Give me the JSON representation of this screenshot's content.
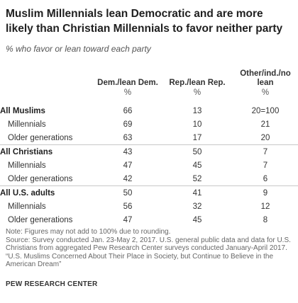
{
  "title": "Muslim Millennials lean Democratic and are more likely than Christian Millennials to favor neither party",
  "subtitle": "% who favor or lean toward each party",
  "chart_data": {
    "type": "table",
    "columns": [
      "Dem./lean Dem.",
      "Rep./lean Rep.",
      "Other/ind./no lean"
    ],
    "unit_label": "%",
    "groups": [
      {
        "label": "All Muslims",
        "values": [
          "66",
          "13",
          "20=100"
        ],
        "rows": [
          {
            "label": "Millennials",
            "values": [
              "69",
              "10",
              "21"
            ]
          },
          {
            "label": "Older generations",
            "values": [
              "63",
              "17",
              "20"
            ]
          }
        ]
      },
      {
        "label": "All Christians",
        "values": [
          "43",
          "50",
          "7"
        ],
        "rows": [
          {
            "label": "Millennials",
            "values": [
              "47",
              "45",
              "7"
            ]
          },
          {
            "label": "Older generations",
            "values": [
              "42",
              "52",
              "6"
            ]
          }
        ]
      },
      {
        "label": "All U.S. adults",
        "values": [
          "50",
          "41",
          "9"
        ],
        "rows": [
          {
            "label": "Millennials",
            "values": [
              "56",
              "32",
              "12"
            ]
          },
          {
            "label": "Older generations",
            "values": [
              "47",
              "45",
              "8"
            ]
          }
        ]
      }
    ]
  },
  "notes": [
    "Note: Figures may not add to 100% due to rounding.",
    "Source: Survey conducted Jan. 23-May 2, 2017.  U.S. general public data and data for U.S. Christians from aggregated Pew Research Center surveys conducted January-April 2017.",
    "“U.S. Muslims Concerned About Their Place in Society, but Continue to Believe in the American Dream”"
  ],
  "brand": "PEW RESEARCH CENTER"
}
